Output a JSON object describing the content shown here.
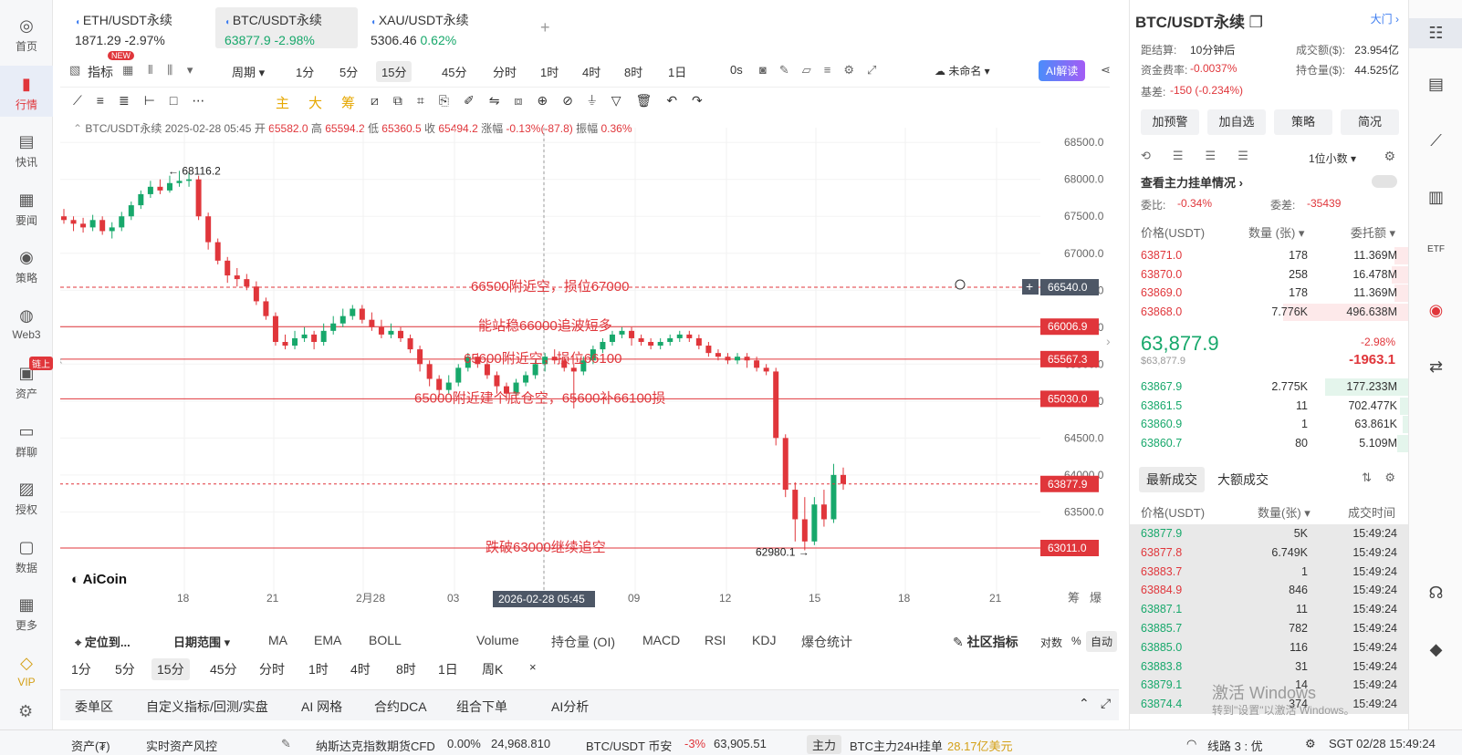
{
  "leftnav": [
    {
      "label": "首页",
      "icon": "home-logo-icon"
    },
    {
      "label": "行情",
      "icon": "bar-chart-icon",
      "active": true
    },
    {
      "label": "快讯",
      "icon": "news-flash-icon"
    },
    {
      "label": "要闻",
      "icon": "document-icon"
    },
    {
      "label": "策略",
      "icon": "robot-icon"
    },
    {
      "label": "Web3",
      "icon": "web3-icon"
    },
    {
      "label": "资产",
      "icon": "wallet-icon",
      "badge": "链上"
    },
    {
      "label": "群聊",
      "icon": "chat-icon"
    },
    {
      "label": "授权",
      "icon": "authorize-icon"
    },
    {
      "label": "数据",
      "icon": "data-screen-icon"
    },
    {
      "label": "更多",
      "icon": "grid-icon"
    },
    {
      "label": "VIP",
      "icon": "diamond-icon"
    }
  ],
  "tabs": [
    {
      "name": "ETH/USDT永续",
      "price": "1871.29",
      "change": "-2.97%",
      "dir": "down"
    },
    {
      "name": "BTC/USDT永续",
      "price": "63877.9",
      "change": "-2.98%",
      "dir": "down"
    },
    {
      "name": "XAU/USDT永续",
      "price": "5306.46",
      "change": "0.62%",
      "dir": "up"
    }
  ],
  "toolbar": {
    "indicator": "指标",
    "new_badge": "NEW",
    "period": "周期",
    "intervals": [
      "1分",
      "5分",
      "15分",
      "45分",
      "分时",
      "1时",
      "4时",
      "8时",
      "1日"
    ],
    "selected_interval": "15分",
    "countdown": "0s",
    "unnamed": "未命名",
    "ai": "AI解读"
  },
  "draw_tools": {
    "labels": [
      "主",
      "大",
      "筹"
    ]
  },
  "ohlc": {
    "symbol": "BTC/USDT永续",
    "time": "2026-02-28 05:45",
    "open_l": "开",
    "open": "65582.0",
    "high_l": "高",
    "high": "65594.2",
    "low_l": "低",
    "low": "65360.5",
    "close_l": "收",
    "close": "65494.2",
    "chg_l": "涨幅",
    "chg": "-0.13%(-87.8)",
    "amp_l": "振幅",
    "amp": "0.36%"
  },
  "chart_data": {
    "type": "candlestick",
    "ylim": [
      62900,
      68700
    ],
    "yticks": [
      "68500.0",
      "68000.0",
      "67500.0",
      "67000.0",
      "66500.0",
      "66000.0",
      "65500.0",
      "65000.0",
      "64500.0",
      "64000.0",
      "63500.0"
    ],
    "xticks": [
      "18",
      "21",
      "2月28",
      "03",
      "06",
      "09",
      "12",
      "15",
      "18",
      "21"
    ],
    "crosshair_label": "2026-02-28 05:45",
    "high_label": "68116.2",
    "low_label": "62980.1",
    "lines": [
      {
        "price": 66540.0,
        "text": "66500附近空，损位67000",
        "tag": "66540.0",
        "dashed": true
      },
      {
        "price": 66006.9,
        "text": "能站稳66000追波短多",
        "tag": "66006.9"
      },
      {
        "price": 65567.3,
        "text": "65600附近空，损位66100",
        "tag": "65567.3"
      },
      {
        "price": 65030.0,
        "text": "65000附近建个底仓空，65600补66100损",
        "tag": "65030.0"
      },
      {
        "price": 63011.0,
        "text": "跌破63000继续追空",
        "tag": "63011.0"
      }
    ],
    "last_price": "63877.9",
    "candles": [
      [
        67500,
        67450,
        67600,
        67400
      ],
      [
        67450,
        67400,
        67500,
        67300
      ],
      [
        67400,
        67350,
        67480,
        67280
      ],
      [
        67350,
        67450,
        67520,
        67300
      ],
      [
        67450,
        67300,
        67500,
        67250
      ],
      [
        67300,
        67350,
        67420,
        67200
      ],
      [
        67350,
        67500,
        67560,
        67300
      ],
      [
        67500,
        67650,
        67700,
        67450
      ],
      [
        67650,
        67800,
        67850,
        67600
      ],
      [
        67800,
        67900,
        67980,
        67750
      ],
      [
        67900,
        67850,
        68000,
        67800
      ],
      [
        67850,
        67950,
        68050,
        67820
      ],
      [
        67950,
        67980,
        68116,
        67900
      ],
      [
        67980,
        68000,
        68100,
        67900
      ],
      [
        68000,
        67500,
        68050,
        67450
      ],
      [
        67500,
        67150,
        67550,
        67050
      ],
      [
        67150,
        66900,
        67200,
        66850
      ],
      [
        66900,
        66700,
        66950,
        66600
      ],
      [
        66700,
        66650,
        66800,
        66550
      ],
      [
        66650,
        66550,
        66720,
        66500
      ],
      [
        66550,
        66350,
        66620,
        66300
      ],
      [
        66350,
        66150,
        66400,
        66100
      ],
      [
        66150,
        65800,
        66200,
        65750
      ],
      [
        65800,
        65750,
        65900,
        65700
      ],
      [
        65750,
        65850,
        65950,
        65700
      ],
      [
        65850,
        65900,
        66000,
        65800
      ],
      [
        65900,
        65800,
        65950,
        65700
      ],
      [
        65800,
        65950,
        66050,
        65750
      ],
      [
        65950,
        66050,
        66150,
        65900
      ],
      [
        66050,
        66150,
        66250,
        66000
      ],
      [
        66150,
        66250,
        66300,
        66100
      ],
      [
        66250,
        66100,
        66300,
        66050
      ],
      [
        66100,
        66000,
        66200,
        65950
      ],
      [
        66000,
        65900,
        66100,
        65850
      ],
      [
        65900,
        65950,
        66050,
        65850
      ],
      [
        65950,
        65850,
        66000,
        65800
      ],
      [
        65850,
        65700,
        65900,
        65650
      ],
      [
        65700,
        65500,
        65750,
        65400
      ],
      [
        65500,
        65300,
        65550,
        65200
      ],
      [
        65300,
        65150,
        65350,
        65050
      ],
      [
        65150,
        65250,
        65350,
        65100
      ],
      [
        65250,
        65450,
        65500,
        65200
      ],
      [
        65450,
        65600,
        65650,
        65400
      ],
      [
        65600,
        65500,
        65650,
        65450
      ],
      [
        65500,
        65350,
        65550,
        65300
      ],
      [
        65350,
        65200,
        65400,
        65100
      ],
      [
        65200,
        65100,
        65250,
        65000
      ],
      [
        65100,
        65250,
        65300,
        65050
      ],
      [
        65250,
        65350,
        65400,
        65200
      ],
      [
        65350,
        65500,
        65550,
        65300
      ],
      [
        65500,
        65600,
        65650,
        65400
      ],
      [
        65600,
        65550,
        65700,
        65500
      ],
      [
        65550,
        65450,
        65600,
        65400
      ],
      [
        65450,
        65400,
        65500,
        64900
      ],
      [
        65400,
        65550,
        65600,
        65350
      ],
      [
        65550,
        65700,
        65750,
        65500
      ],
      [
        65700,
        65800,
        65850,
        65650
      ],
      [
        65800,
        65900,
        65950,
        65750
      ],
      [
        65900,
        65950,
        66000,
        65850
      ],
      [
        65950,
        65850,
        66000,
        65750
      ],
      [
        65850,
        65800,
        65900,
        65750
      ],
      [
        65800,
        65750,
        65850,
        65700
      ],
      [
        65750,
        65800,
        65850,
        65700
      ],
      [
        65800,
        65850,
        65900,
        65750
      ],
      [
        65850,
        65900,
        65950,
        65800
      ],
      [
        65900,
        65850,
        65950,
        65800
      ],
      [
        65850,
        65750,
        65900,
        65700
      ],
      [
        65750,
        65650,
        65800,
        65600
      ],
      [
        65650,
        65600,
        65700,
        65550
      ],
      [
        65600,
        65550,
        65650,
        65500
      ],
      [
        65550,
        65600,
        65650,
        65500
      ],
      [
        65600,
        65550,
        65650,
        65450
      ],
      [
        65550,
        65450,
        65600,
        65400
      ],
      [
        65450,
        65400,
        65500,
        65350
      ],
      [
        65400,
        64500,
        65450,
        64400
      ],
      [
        64500,
        63800,
        64550,
        63700
      ],
      [
        63800,
        63400,
        63900,
        63100
      ],
      [
        63400,
        63100,
        63700,
        62980
      ],
      [
        63100,
        63600,
        63700,
        63050
      ],
      [
        63600,
        63400,
        63800,
        63300
      ],
      [
        63400,
        64000,
        64150,
        63350
      ],
      [
        64000,
        63880,
        64100,
        63800
      ]
    ]
  },
  "watermark": "AiCoin",
  "bottom_indicators": {
    "locate": "定位到...",
    "date_range": "日期范围",
    "items": [
      "MA",
      "EMA",
      "BOLL",
      "Volume",
      "持仓量 (OI)",
      "MACD",
      "RSI",
      "KDJ",
      "爆仓统计"
    ],
    "community": "社区指标",
    "log": "对数",
    "pct": "%",
    "auto": "自动",
    "intervals": [
      "1分",
      "5分",
      "15分",
      "45分",
      "分时",
      "1时",
      "4时",
      "8时",
      "1日",
      "周K"
    ]
  },
  "bottom_tabs": [
    "委单区",
    "自定义指标/回测/实盘",
    "AI 网格",
    "合约DCA",
    "组合下单",
    "AI分析"
  ],
  "right": {
    "title": "BTC/USDT永续",
    "gate": "大门",
    "settle_l": "距结算:",
    "settle": "10分钟后",
    "vol_l": "成交额($):",
    "vol": "23.954亿",
    "fund_l": "资金费率:",
    "fund": "-0.0037%",
    "oi_l": "持仓量($):",
    "oi": "44.525亿",
    "basis_l": "基差:",
    "basis": "-150 (-0.234%)",
    "buttons": [
      "加预警",
      "加自选",
      "策略",
      "简况"
    ],
    "decimals": "1位小数",
    "view_orders": "查看主力挂单情况",
    "weibi_l": "委比:",
    "weibi": "-0.34%",
    "weicha_l": "委差:",
    "weicha": "-35439",
    "ob_headers": [
      "价格(USDT)",
      "数量 (张)",
      "委托额"
    ],
    "asks": [
      [
        "63871.0",
        "178",
        "11.369M",
        0.05
      ],
      [
        "63870.0",
        "258",
        "16.478M",
        0.06
      ],
      [
        "63869.0",
        "178",
        "11.369M",
        0.05
      ],
      [
        "63868.0",
        "7.776K",
        "496.638M",
        0.45
      ]
    ],
    "last": "63,877.9",
    "last_usd": "$63,877.9",
    "last_pct": "-2.98%",
    "last_chg": "-1963.1",
    "bids": [
      [
        "63867.9",
        "2.775K",
        "177.233M",
        0.3
      ],
      [
        "63861.5",
        "11",
        "702.477K",
        0.03
      ],
      [
        "63860.9",
        "1",
        "63.861K",
        0.02
      ],
      [
        "63860.7",
        "80",
        "5.109M",
        0.04
      ]
    ],
    "trade_tabs": [
      "最新成交",
      "大额成交"
    ],
    "tr_headers": [
      "价格(USDT)",
      "数量(张)",
      "成交时间"
    ],
    "trades": [
      [
        "63877.9",
        "5K",
        "15:49:24",
        "up"
      ],
      [
        "63877.8",
        "6.749K",
        "15:49:24",
        "down"
      ],
      [
        "63883.7",
        "1",
        "15:49:24",
        "down"
      ],
      [
        "63884.9",
        "846",
        "15:49:24",
        "down"
      ],
      [
        "63887.1",
        "11",
        "15:49:24",
        "up"
      ],
      [
        "63885.7",
        "782",
        "15:49:24",
        "up"
      ],
      [
        "63885.0",
        "116",
        "15:49:24",
        "up"
      ],
      [
        "63883.8",
        "31",
        "15:49:24",
        "up"
      ],
      [
        "63879.1",
        "14",
        "15:49:24",
        "up"
      ],
      [
        "63874.4",
        "374",
        "15:49:24",
        "up"
      ]
    ],
    "activate": "激活 Windows",
    "activate_sub": "转到\"设置\"以激活 Windows。"
  },
  "status": {
    "assets": "资产(₮)",
    "risk": "实时资产风控",
    "nasdaq": "纳斯达克指数期货CFD",
    "nasdaq_pct": "0.00%",
    "nasdaq_val": "24,968.810",
    "btc": "BTC/USDT 币安",
    "btc_pct": "-3%",
    "btc_val": "63,905.51",
    "main": "主力",
    "main_text": "BTC主力24H挂单",
    "main_val": "28.17亿美元",
    "line": "线路 3 : 优",
    "time": "SGT 02/28 15:49:24"
  }
}
